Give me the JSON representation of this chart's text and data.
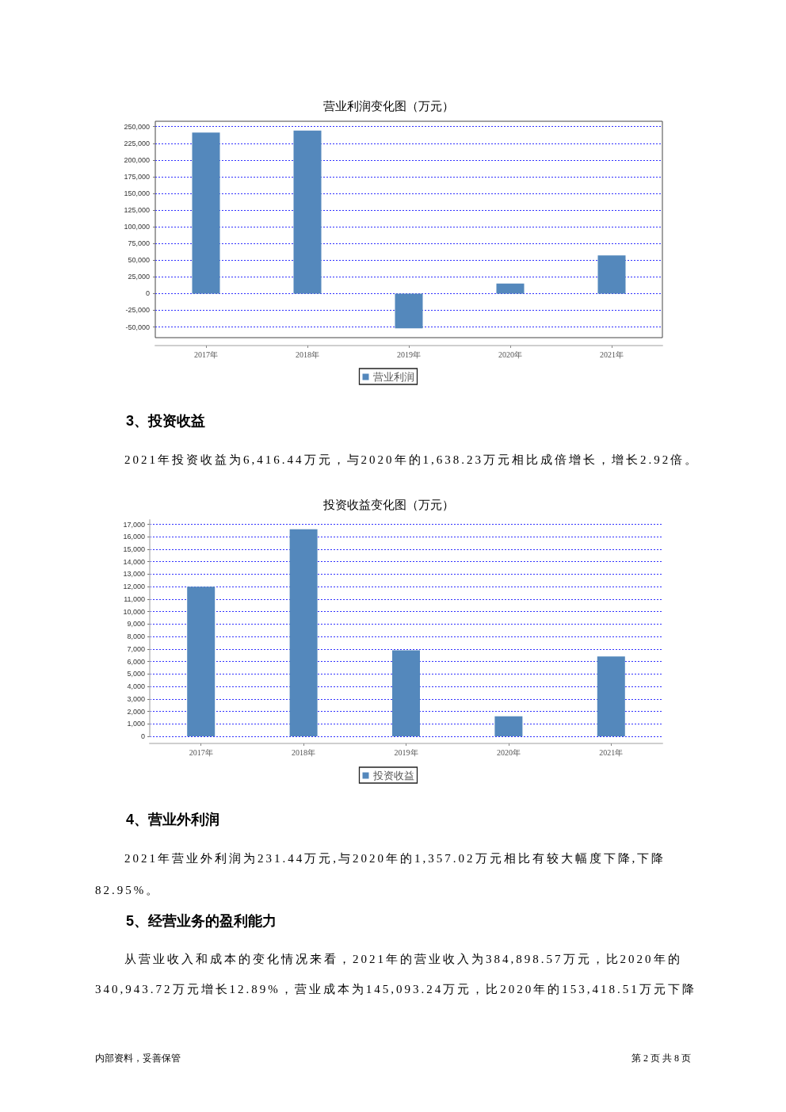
{
  "chart_data": [
    {
      "type": "bar",
      "title": "营业利润变化图（万元）",
      "categories": [
        "2017年",
        "2018年",
        "2019年",
        "2020年",
        "2021年"
      ],
      "series": [
        {
          "name": "营业利润",
          "color": "#5488bc",
          "values": [
            241000,
            244000,
            -52000,
            15000,
            57000
          ]
        }
      ],
      "ylim": [
        -66000,
        258000
      ],
      "yticks": [
        {
          "value": -50000,
          "label": "-50,000"
        },
        {
          "value": -25000,
          "label": "-25,000"
        },
        {
          "value": 0,
          "label": "0"
        },
        {
          "value": 25000,
          "label": "25,000"
        },
        {
          "value": 50000,
          "label": "50,000"
        },
        {
          "value": 75000,
          "label": "75,000"
        },
        {
          "value": 100000,
          "label": "100,000"
        },
        {
          "value": 125000,
          "label": "125,000"
        },
        {
          "value": 150000,
          "label": "150,000"
        },
        {
          "value": 175000,
          "label": "175,000"
        },
        {
          "value": 200000,
          "label": "200,000"
        },
        {
          "value": 225000,
          "label": "225,000"
        },
        {
          "value": 250000,
          "label": "250,000"
        }
      ],
      "grid": "y",
      "legend": "bottom",
      "annotations": [
        "3、投资收益",
        "2021年投资收益为6,416.44万元，与2020年的1,638.23万元相比成倍增长，增长2.92倍。"
      ]
    },
    {
      "type": "bar",
      "title": "投资收益变化图（万元）",
      "categories": [
        "2017年",
        "2018年",
        "2019年",
        "2020年",
        "2021年"
      ],
      "series": [
        {
          "name": "投资收益",
          "color": "#5488bc",
          "values": [
            12000,
            16600,
            6900,
            1600,
            6400
          ]
        }
      ],
      "ylim": [
        0,
        17350
      ],
      "yticks": [
        {
          "value": 0,
          "label": "0"
        },
        {
          "value": 1000,
          "label": "1,000"
        },
        {
          "value": 2000,
          "label": "2,000"
        },
        {
          "value": 3000,
          "label": "3,000"
        },
        {
          "value": 4000,
          "label": "4,000"
        },
        {
          "value": 5000,
          "label": "5,000"
        },
        {
          "value": 6000,
          "label": "6,000"
        },
        {
          "value": 7000,
          "label": "7,000"
        },
        {
          "value": 8000,
          "label": "8,000"
        },
        {
          "value": 9000,
          "label": "9,000"
        },
        {
          "value": 10000,
          "label": "10,000"
        },
        {
          "value": 11000,
          "label": "11,000"
        },
        {
          "value": 12000,
          "label": "12,000"
        },
        {
          "value": 13000,
          "label": "13,000"
        },
        {
          "value": 14000,
          "label": "14,000"
        },
        {
          "value": 15000,
          "label": "15,000"
        },
        {
          "value": 16000,
          "label": "16,000"
        },
        {
          "value": 17000,
          "label": "17,000"
        }
      ],
      "grid": "y",
      "legend": "bottom",
      "annotations": [
        "4、营业外利润",
        "2021年营业外利润为231.44万元,与2020年的1,357.02万元相比有较大幅度下降,下降82.95%。",
        "5、经营业务的盈利能力",
        "从营业收入和成本的变化情况来看，2021年的营业收入为384,898.57万元，比2020年的340,943.72万元增长12.89%，营业成本为145,093.24万元，比2020年的153,418.51万元下降",
        "内部资料，妥善保管",
        "第 2 页 共 8 页"
      ]
    }
  ]
}
